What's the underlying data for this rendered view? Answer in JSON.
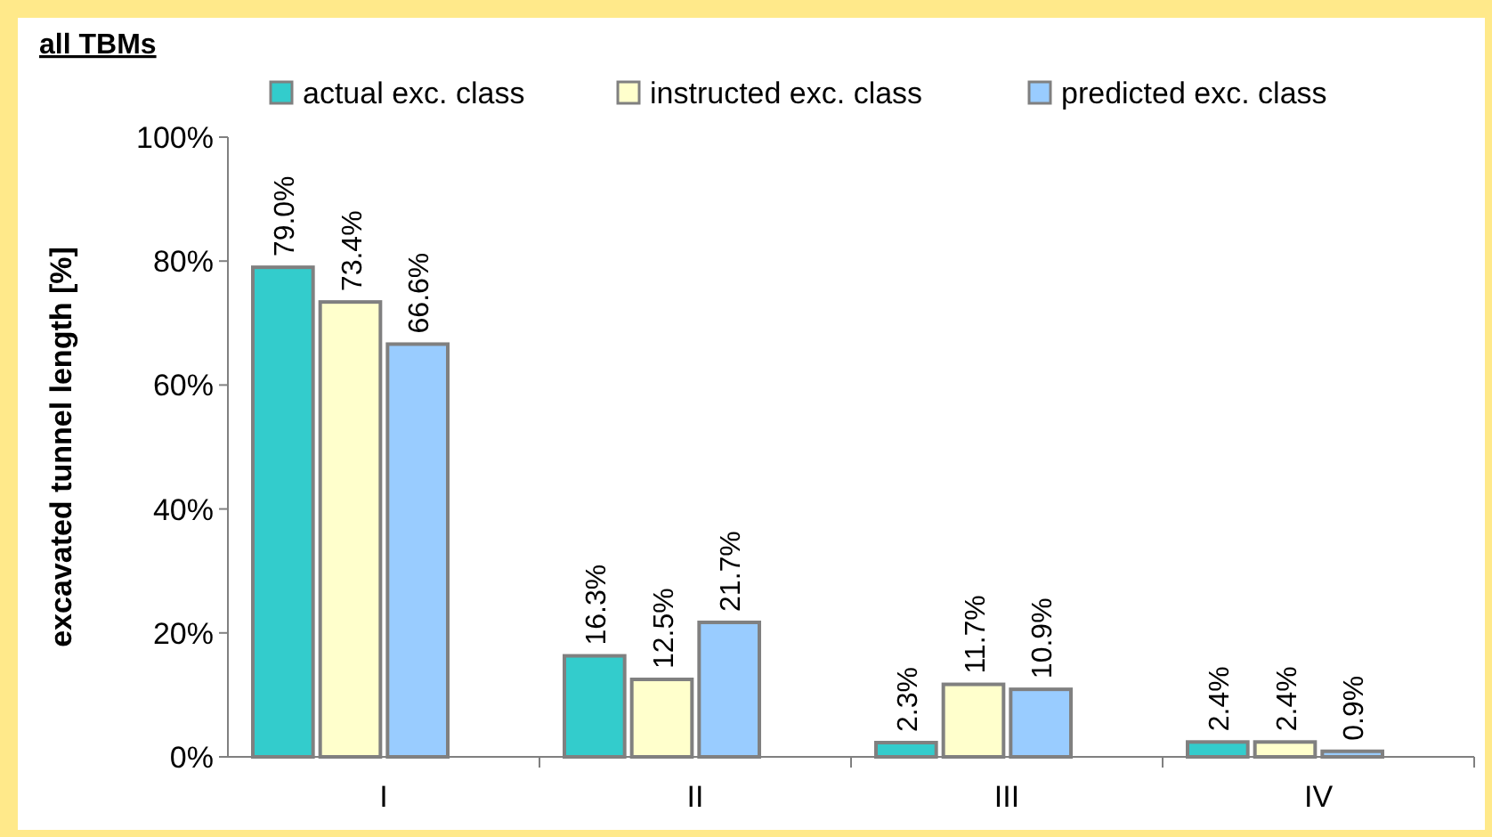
{
  "chart_data": {
    "type": "bar",
    "title": "all TBMs",
    "ylabel": "excavated tunnel length [%]",
    "categories": [
      "I",
      "II",
      "III",
      "IV"
    ],
    "series": [
      {
        "name": "actual exc. class",
        "color": "#33cccc",
        "values": [
          79.0,
          16.3,
          2.3,
          2.4
        ],
        "value_labels": [
          "79.0%",
          "16.3%",
          "2.3%",
          "2.4%"
        ]
      },
      {
        "name": "instructed exc. class",
        "color": "#ffffcc",
        "values": [
          73.4,
          12.5,
          11.7,
          2.4
        ],
        "value_labels": [
          "73.4%",
          "12.5%",
          "11.7%",
          "2.4%"
        ]
      },
      {
        "name": "predicted exc. class",
        "color": "#99ccff",
        "values": [
          66.6,
          21.7,
          10.9,
          0.9
        ],
        "value_labels": [
          "66.6%",
          "21.7%",
          "10.9%",
          "0.9%"
        ]
      }
    ],
    "ylim": [
      0,
      100
    ],
    "yticks": [
      {
        "value": 0,
        "label": "0%"
      },
      {
        "value": 20,
        "label": "20%"
      },
      {
        "value": 40,
        "label": "40%"
      },
      {
        "value": 60,
        "label": "60%"
      },
      {
        "value": 80,
        "label": "80%"
      },
      {
        "value": 100,
        "label": "100%"
      }
    ],
    "legend": "top",
    "grid": false
  }
}
